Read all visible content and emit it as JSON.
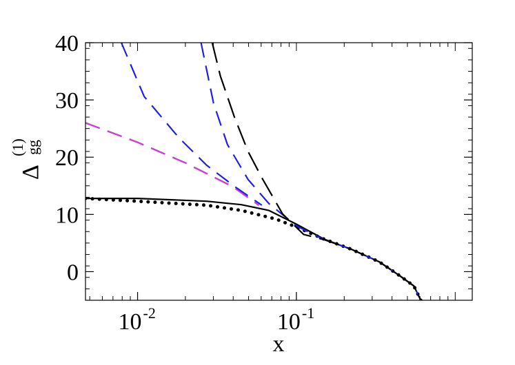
{
  "chart_data": {
    "type": "line",
    "xlabel": "x",
    "ylabel": "Δ",
    "ylabel_sub": "gg",
    "ylabel_sup": "(1)",
    "xscale": "log",
    "xlim": [
      0.0047,
      1.28
    ],
    "ylim": [
      -5,
      40
    ],
    "xticks": [
      {
        "value": 0.01,
        "label": "10",
        "exponent": "-2"
      },
      {
        "value": 0.1,
        "label": "10",
        "exponent": "-1"
      }
    ],
    "yticks": [
      0,
      10,
      20,
      30,
      40
    ],
    "series": [
      {
        "color": "#000000",
        "dash": "solid",
        "x": [
          0.0047,
          0.01,
          0.0272,
          0.045,
          0.067,
          0.1,
          0.149,
          0.222,
          0.333,
          0.447,
          0.549,
          0.607
        ],
        "values": [
          12.8,
          12.8,
          12.3,
          11.7,
          10.7,
          8.3,
          5.7,
          3.9,
          1.7,
          -0.7,
          -2.5,
          -5
        ]
      },
      {
        "color": "#000000",
        "dash": "dotted",
        "x": [
          0.0047,
          0.01,
          0.0272,
          0.045,
          0.074,
          0.1,
          0.149,
          0.222,
          0.333,
          0.447,
          0.549,
          0.607
        ],
        "values": [
          12.8,
          12.3,
          11.6,
          10.7,
          9.2,
          7.8,
          5.7,
          3.9,
          1.7,
          -0.7,
          -2.5,
          -5
        ]
      },
      {
        "color": "#2020e0",
        "dash": "dashed",
        "x": [
          0.0047,
          0.01,
          0.02,
          0.04,
          0.058
        ],
        "values": [
          26.0,
          22.6,
          19.0,
          14.8,
          11.6
        ]
      },
      {
        "color": "#d040d0",
        "dash": "dashed-offset",
        "x": [
          0.0047,
          0.01,
          0.02,
          0.04,
          0.058
        ],
        "values": [
          26.0,
          22.6,
          19.0,
          14.8,
          11.6
        ]
      },
      {
        "color": "#2020e0",
        "dash": "dashed",
        "x": [
          0.0079,
          0.011,
          0.0182,
          0.0272,
          0.0407,
          0.0606
        ],
        "values": [
          40,
          30.6,
          23.4,
          18.6,
          14.9,
          11.6
        ]
      },
      {
        "color": "#2020e0",
        "dash": "dashed",
        "x": [
          0.0251,
          0.0301,
          0.0368,
          0.0496,
          0.067,
          0.1,
          0.149,
          0.222,
          0.333,
          0.447,
          0.549,
          0.607
        ],
        "values": [
          40,
          29.4,
          22.2,
          16.1,
          11.9,
          8.0,
          5.6,
          3.9,
          1.7,
          -0.7,
          -2.5,
          -5
        ]
      },
      {
        "color": "#000000",
        "dash": "longdash",
        "x": [
          0.0295,
          0.0332,
          0.0407,
          0.0496,
          0.0606,
          0.0818,
          0.111,
          0.149,
          0.222,
          0.333,
          0.447,
          0.549,
          0.607
        ],
        "values": [
          40,
          34.2,
          27,
          21,
          16.4,
          10.1,
          6.5,
          5.6,
          3.9,
          1.7,
          -0.7,
          -2.5,
          -5
        ]
      }
    ]
  }
}
